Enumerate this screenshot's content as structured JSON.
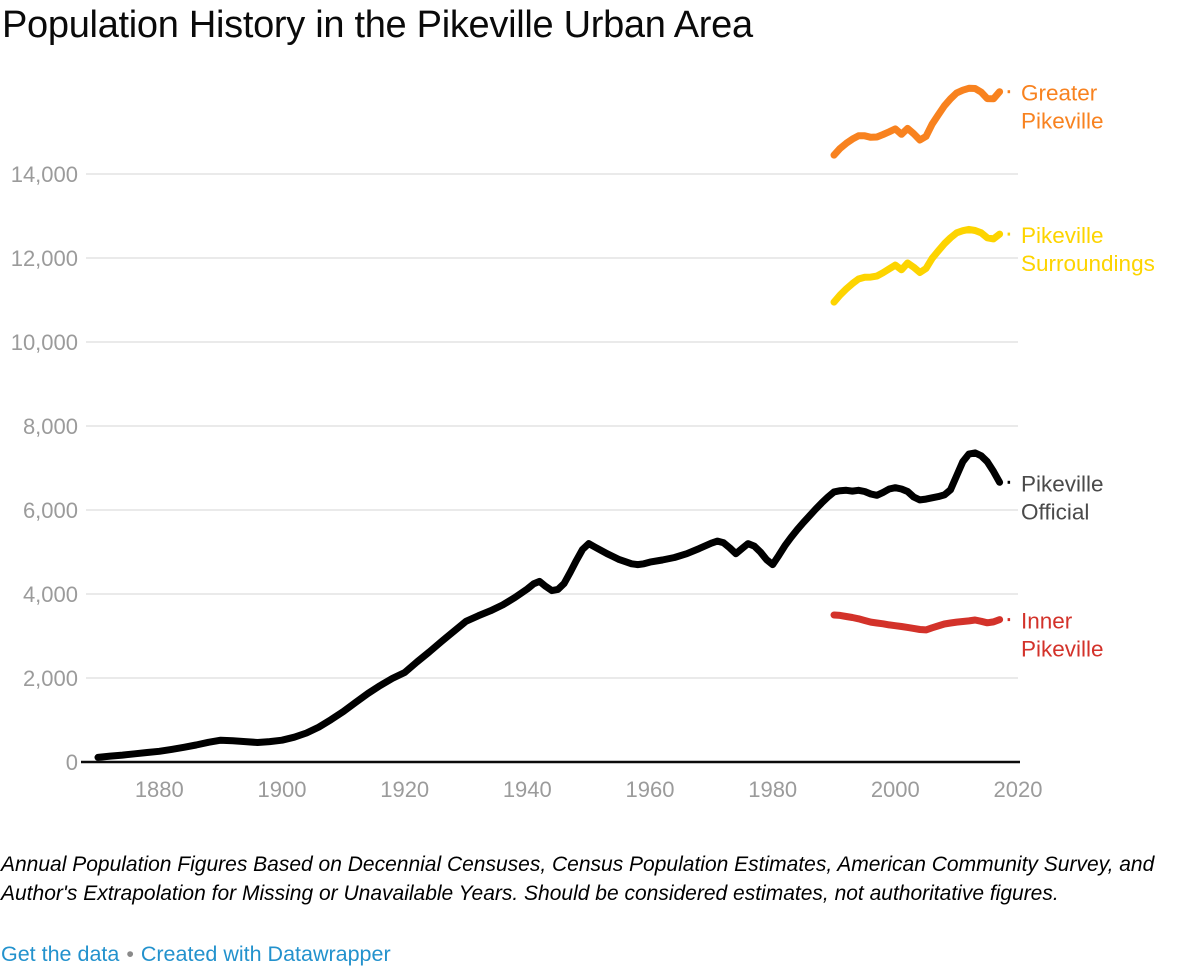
{
  "title": "Population History in the Pikeville Urban Area",
  "chart_data": {
    "type": "line",
    "title": "Population History in the Pikeville Urban Area",
    "xlabel": "",
    "ylabel": "",
    "x_ticks": [
      1880,
      1900,
      1920,
      1940,
      1960,
      1980,
      2000,
      2020
    ],
    "y_ticks": [
      0,
      2000,
      4000,
      6000,
      8000,
      10000,
      12000,
      14000
    ],
    "x_range": [
      1870,
      2020
    ],
    "y_range": [
      0,
      16300
    ],
    "grid": "horizontal-only",
    "legend_position": "direct-labels-right",
    "axis_text_color": "#9b9b9b",
    "gridline_color": "#e4e4e4",
    "baseline_color": "#0b0b0b",
    "series": [
      {
        "name": "Greater Pikeville",
        "label_lines": [
          "Greater",
          "Pikeville"
        ],
        "color": "#f8821f",
        "label_color": "#f8821f",
        "points": [
          [
            1990,
            14450
          ],
          [
            1991,
            14610
          ],
          [
            1992,
            14730
          ],
          [
            1993,
            14830
          ],
          [
            1994,
            14910
          ],
          [
            1995,
            14910
          ],
          [
            1996,
            14875
          ],
          [
            1997,
            14880
          ],
          [
            1998,
            14940
          ],
          [
            1999,
            15005
          ],
          [
            2000,
            15075
          ],
          [
            2001,
            14945
          ],
          [
            2002,
            15085
          ],
          [
            2003,
            14960
          ],
          [
            2004,
            14810
          ],
          [
            2005,
            14895
          ],
          [
            2006,
            15185
          ],
          [
            2007,
            15410
          ],
          [
            2008,
            15625
          ],
          [
            2009,
            15790
          ],
          [
            2010,
            15930
          ],
          [
            2011,
            15995
          ],
          [
            2012,
            16040
          ],
          [
            2013,
            16035
          ],
          [
            2014,
            15950
          ],
          [
            2015,
            15795
          ],
          [
            2016,
            15790
          ],
          [
            2017,
            15960
          ]
        ]
      },
      {
        "name": "Pikeville Surroundings",
        "label_lines": [
          "Pikeville",
          "Surroundings"
        ],
        "color": "#fdd400",
        "label_color": "#fdd400",
        "points": [
          [
            1990,
            10950
          ],
          [
            1991,
            11120
          ],
          [
            1992,
            11265
          ],
          [
            1993,
            11390
          ],
          [
            1994,
            11500
          ],
          [
            1995,
            11540
          ],
          [
            1996,
            11545
          ],
          [
            1997,
            11570
          ],
          [
            1998,
            11650
          ],
          [
            1999,
            11740
          ],
          [
            2000,
            11830
          ],
          [
            2001,
            11720
          ],
          [
            2002,
            11880
          ],
          [
            2003,
            11780
          ],
          [
            2004,
            11655
          ],
          [
            2005,
            11750
          ],
          [
            2006,
            11990
          ],
          [
            2007,
            12170
          ],
          [
            2008,
            12340
          ],
          [
            2009,
            12480
          ],
          [
            2010,
            12600
          ],
          [
            2011,
            12650
          ],
          [
            2012,
            12680
          ],
          [
            2013,
            12655
          ],
          [
            2014,
            12600
          ],
          [
            2015,
            12480
          ],
          [
            2016,
            12455
          ],
          [
            2017,
            12570
          ]
        ]
      },
      {
        "name": "Pikeville Official",
        "label_lines": [
          "Pikeville",
          "Official"
        ],
        "color": "#000000",
        "label_color": "#4a4a4a",
        "points": [
          [
            1870,
            110
          ],
          [
            1872,
            140
          ],
          [
            1874,
            165
          ],
          [
            1876,
            195
          ],
          [
            1878,
            225
          ],
          [
            1880,
            255
          ],
          [
            1882,
            300
          ],
          [
            1884,
            350
          ],
          [
            1886,
            405
          ],
          [
            1888,
            470
          ],
          [
            1890,
            520
          ],
          [
            1892,
            505
          ],
          [
            1894,
            485
          ],
          [
            1896,
            465
          ],
          [
            1898,
            485
          ],
          [
            1900,
            520
          ],
          [
            1902,
            590
          ],
          [
            1904,
            690
          ],
          [
            1906,
            830
          ],
          [
            1908,
            1010
          ],
          [
            1910,
            1200
          ],
          [
            1912,
            1420
          ],
          [
            1914,
            1630
          ],
          [
            1916,
            1820
          ],
          [
            1918,
            1990
          ],
          [
            1920,
            2130
          ],
          [
            1922,
            2380
          ],
          [
            1924,
            2620
          ],
          [
            1926,
            2870
          ],
          [
            1928,
            3110
          ],
          [
            1930,
            3350
          ],
          [
            1932,
            3480
          ],
          [
            1934,
            3600
          ],
          [
            1936,
            3740
          ],
          [
            1938,
            3920
          ],
          [
            1940,
            4120
          ],
          [
            1941,
            4240
          ],
          [
            1942,
            4300
          ],
          [
            1943,
            4180
          ],
          [
            1944,
            4080
          ],
          [
            1945,
            4110
          ],
          [
            1946,
            4250
          ],
          [
            1947,
            4520
          ],
          [
            1948,
            4800
          ],
          [
            1949,
            5060
          ],
          [
            1950,
            5200
          ],
          [
            1951,
            5120
          ],
          [
            1952,
            5040
          ],
          [
            1953,
            4960
          ],
          [
            1954,
            4890
          ],
          [
            1955,
            4820
          ],
          [
            1956,
            4770
          ],
          [
            1957,
            4720
          ],
          [
            1958,
            4700
          ],
          [
            1959,
            4720
          ],
          [
            1960,
            4760
          ],
          [
            1962,
            4810
          ],
          [
            1964,
            4870
          ],
          [
            1966,
            4960
          ],
          [
            1968,
            5080
          ],
          [
            1970,
            5210
          ],
          [
            1971,
            5260
          ],
          [
            1972,
            5220
          ],
          [
            1973,
            5100
          ],
          [
            1974,
            4960
          ],
          [
            1975,
            5080
          ],
          [
            1976,
            5200
          ],
          [
            1977,
            5140
          ],
          [
            1978,
            5000
          ],
          [
            1979,
            4820
          ],
          [
            1980,
            4700
          ],
          [
            1981,
            4920
          ],
          [
            1982,
            5150
          ],
          [
            1983,
            5350
          ],
          [
            1984,
            5530
          ],
          [
            1985,
            5700
          ],
          [
            1986,
            5860
          ],
          [
            1987,
            6020
          ],
          [
            1988,
            6170
          ],
          [
            1989,
            6310
          ],
          [
            1990,
            6430
          ],
          [
            1991,
            6460
          ],
          [
            1992,
            6470
          ],
          [
            1993,
            6450
          ],
          [
            1994,
            6470
          ],
          [
            1995,
            6440
          ],
          [
            1996,
            6380
          ],
          [
            1997,
            6350
          ],
          [
            1998,
            6420
          ],
          [
            1999,
            6500
          ],
          [
            2000,
            6530
          ],
          [
            2001,
            6500
          ],
          [
            2002,
            6440
          ],
          [
            2003,
            6310
          ],
          [
            2004,
            6240
          ],
          [
            2005,
            6260
          ],
          [
            2006,
            6290
          ],
          [
            2007,
            6320
          ],
          [
            2008,
            6360
          ],
          [
            2009,
            6480
          ],
          [
            2010,
            6820
          ],
          [
            2011,
            7150
          ],
          [
            2012,
            7330
          ],
          [
            2013,
            7360
          ],
          [
            2014,
            7290
          ],
          [
            2015,
            7150
          ],
          [
            2016,
            6920
          ],
          [
            2017,
            6660
          ]
        ]
      },
      {
        "name": "Inner Pikeville",
        "label_lines": [
          "Inner",
          "Pikeville"
        ],
        "color": "#d3322a",
        "label_color": "#d3322a",
        "points": [
          [
            1990,
            3500
          ],
          [
            1991,
            3490
          ],
          [
            1992,
            3465
          ],
          [
            1993,
            3440
          ],
          [
            1994,
            3410
          ],
          [
            1995,
            3370
          ],
          [
            1996,
            3330
          ],
          [
            1997,
            3310
          ],
          [
            1998,
            3290
          ],
          [
            1999,
            3265
          ],
          [
            2000,
            3245
          ],
          [
            2001,
            3225
          ],
          [
            2002,
            3205
          ],
          [
            2003,
            3180
          ],
          [
            2004,
            3155
          ],
          [
            2005,
            3145
          ],
          [
            2006,
            3195
          ],
          [
            2007,
            3240
          ],
          [
            2008,
            3285
          ],
          [
            2009,
            3310
          ],
          [
            2010,
            3330
          ],
          [
            2011,
            3345
          ],
          [
            2012,
            3360
          ],
          [
            2013,
            3380
          ],
          [
            2014,
            3350
          ],
          [
            2015,
            3315
          ],
          [
            2016,
            3335
          ],
          [
            2017,
            3390
          ]
        ]
      }
    ]
  },
  "footer": {
    "note": "Annual Population Figures Based on Decennial Censuses, Census Population Estimates, American Community Survey, and Author's Extrapolation for Missing or Unavailable Years. Should be considered estimates, not authoritative figures.",
    "separator": "•",
    "links": [
      {
        "label": "Get the data"
      },
      {
        "label": "Created with Datawrapper"
      }
    ],
    "link_color": "#2392cd"
  }
}
